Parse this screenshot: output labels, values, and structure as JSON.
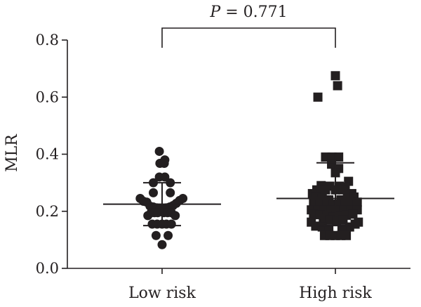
{
  "chart_data": {
    "type": "scatter",
    "ylabel": "MLR",
    "xlabel": "",
    "ylim": [
      0,
      0.8
    ],
    "yticks": [
      0.0,
      0.2,
      0.4,
      0.6,
      0.8
    ],
    "ytick_labels": [
      "0.0",
      "0.2",
      "0.4",
      "0.6",
      "0.8"
    ],
    "categories": [
      "Low risk",
      "High risk"
    ],
    "annotation": {
      "p_label": "P",
      "p_rest": " = 0.771"
    },
    "marker_color": "#231f20",
    "series": [
      {
        "marker": "circle",
        "mean": 0.225,
        "upper": 0.3,
        "lower": 0.15,
        "points": [
          {
            "off": -0.4,
            "y": 0.245
          },
          {
            "off": -0.34,
            "y": 0.235
          },
          {
            "off": -0.28,
            "y": 0.232
          },
          {
            "off": -0.22,
            "y": 0.218
          },
          {
            "off": -0.16,
            "y": 0.215
          },
          {
            "off": -0.1,
            "y": 0.212
          },
          {
            "off": -0.04,
            "y": 0.21
          },
          {
            "off": 0.02,
            "y": 0.21
          },
          {
            "off": 0.08,
            "y": 0.212
          },
          {
            "off": 0.14,
            "y": 0.215
          },
          {
            "off": 0.2,
            "y": 0.22
          },
          {
            "off": 0.26,
            "y": 0.228
          },
          {
            "off": 0.32,
            "y": 0.238
          },
          {
            "off": 0.38,
            "y": 0.245
          },
          {
            "off": -0.26,
            "y": 0.185
          },
          {
            "off": -0.2,
            "y": 0.195
          },
          {
            "off": -0.14,
            "y": 0.195
          },
          {
            "off": -0.08,
            "y": 0.195
          },
          {
            "off": 0.03,
            "y": 0.195
          },
          {
            "off": 0.1,
            "y": 0.195
          },
          {
            "off": 0.17,
            "y": 0.195
          },
          {
            "off": 0.24,
            "y": 0.185
          },
          {
            "off": -0.18,
            "y": 0.155
          },
          {
            "off": -0.09,
            "y": 0.155
          },
          {
            "off": 0.0,
            "y": 0.155
          },
          {
            "off": 0.08,
            "y": 0.155
          },
          {
            "off": 0.17,
            "y": 0.155
          },
          {
            "off": -0.11,
            "y": 0.115
          },
          {
            "off": 0.11,
            "y": 0.115
          },
          {
            "off": 0.0,
            "y": 0.083
          },
          {
            "off": -0.16,
            "y": 0.265
          },
          {
            "off": 0.15,
            "y": 0.265
          },
          {
            "off": -0.16,
            "y": 0.3
          },
          {
            "off": 0.15,
            "y": 0.3
          },
          {
            "off": -0.05,
            "y": 0.32
          },
          {
            "off": 0.05,
            "y": 0.32
          },
          {
            "off": -0.04,
            "y": 0.368
          },
          {
            "off": 0.04,
            "y": 0.368
          },
          {
            "off": 0.05,
            "y": 0.38
          },
          {
            "off": -0.05,
            "y": 0.41
          }
        ]
      },
      {
        "marker": "square",
        "mean": 0.245,
        "upper": 0.37,
        "lower": 0.15,
        "points": [
          {
            "off": -0.32,
            "y": 0.6
          },
          {
            "off": 0.0,
            "y": 0.675
          },
          {
            "off": 0.04,
            "y": 0.64
          },
          {
            "off": -0.18,
            "y": 0.39
          },
          {
            "off": -0.06,
            "y": 0.39
          },
          {
            "off": 0.06,
            "y": 0.39
          },
          {
            "off": -0.07,
            "y": 0.365
          },
          {
            "off": 0.06,
            "y": 0.35
          },
          {
            "off": 0.0,
            "y": 0.335
          },
          {
            "off": 0.24,
            "y": 0.305
          },
          {
            "off": -0.26,
            "y": 0.29
          },
          {
            "off": -0.1,
            "y": 0.288
          },
          {
            "off": 0.07,
            "y": 0.288
          },
          {
            "off": 0.18,
            "y": 0.285
          },
          {
            "off": -0.34,
            "y": 0.275
          },
          {
            "off": -0.18,
            "y": 0.275
          },
          {
            "off": 0.0,
            "y": 0.275
          },
          {
            "off": 0.14,
            "y": 0.275
          },
          {
            "off": -0.42,
            "y": 0.262
          },
          {
            "off": 0.3,
            "y": 0.262
          },
          {
            "off": -0.36,
            "y": 0.25
          },
          {
            "off": -0.24,
            "y": 0.245
          },
          {
            "off": -0.12,
            "y": 0.24
          },
          {
            "off": 0.1,
            "y": 0.24
          },
          {
            "off": 0.22,
            "y": 0.245
          },
          {
            "off": 0.34,
            "y": 0.25
          },
          {
            "off": -0.4,
            "y": 0.23
          },
          {
            "off": -0.28,
            "y": 0.23
          },
          {
            "off": -0.16,
            "y": 0.228
          },
          {
            "off": -0.04,
            "y": 0.225
          },
          {
            "off": 0.06,
            "y": 0.225
          },
          {
            "off": 0.18,
            "y": 0.228
          },
          {
            "off": 0.3,
            "y": 0.23
          },
          {
            "off": 0.4,
            "y": 0.232
          },
          {
            "off": -0.44,
            "y": 0.205
          },
          {
            "off": -0.32,
            "y": 0.205
          },
          {
            "off": -0.2,
            "y": 0.205
          },
          {
            "off": -0.08,
            "y": 0.205
          },
          {
            "off": 0.04,
            "y": 0.205
          },
          {
            "off": 0.16,
            "y": 0.205
          },
          {
            "off": 0.28,
            "y": 0.205
          },
          {
            "off": 0.4,
            "y": 0.205
          },
          {
            "off": -0.4,
            "y": 0.19
          },
          {
            "off": -0.28,
            "y": 0.188
          },
          {
            "off": -0.16,
            "y": 0.185
          },
          {
            "off": -0.04,
            "y": 0.18
          },
          {
            "off": 0.08,
            "y": 0.182
          },
          {
            "off": 0.2,
            "y": 0.186
          },
          {
            "off": 0.32,
            "y": 0.19
          },
          {
            "off": -0.22,
            "y": 0.175
          },
          {
            "off": -0.1,
            "y": 0.17
          },
          {
            "off": 0.02,
            "y": 0.165
          },
          {
            "off": 0.14,
            "y": 0.17
          },
          {
            "off": -0.44,
            "y": 0.162
          },
          {
            "off": 0.42,
            "y": 0.162
          },
          {
            "off": -0.36,
            "y": 0.148
          },
          {
            "off": -0.24,
            "y": 0.145
          },
          {
            "off": 0.26,
            "y": 0.145
          },
          {
            "off": 0.36,
            "y": 0.155
          },
          {
            "off": -0.12,
            "y": 0.138
          },
          {
            "off": 0.12,
            "y": 0.138
          },
          {
            "off": -0.2,
            "y": 0.115
          },
          {
            "off": -0.1,
            "y": 0.115
          },
          {
            "off": 0.0,
            "y": 0.115
          },
          {
            "off": 0.1,
            "y": 0.115
          },
          {
            "off": 0.2,
            "y": 0.115
          }
        ]
      }
    ]
  }
}
